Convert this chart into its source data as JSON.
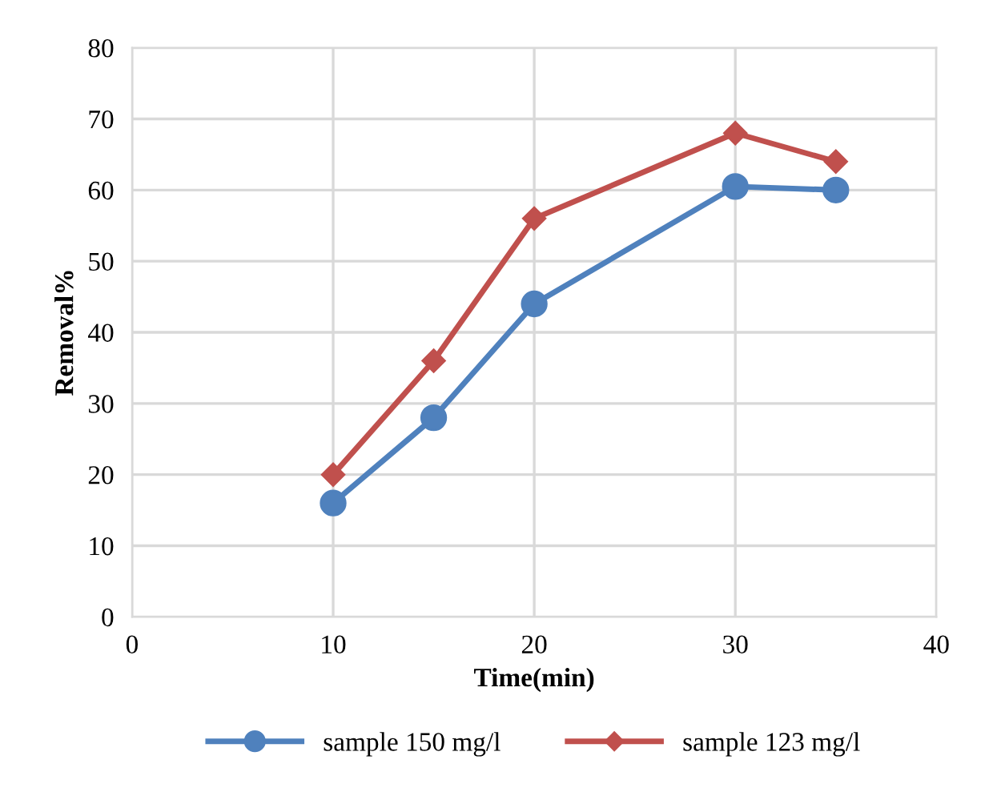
{
  "chart_data": {
    "type": "line",
    "xlabel": "Time(min)",
    "ylabel": "Removal%",
    "x": [
      10,
      15,
      20,
      30,
      35
    ],
    "series": [
      {
        "name": "sample 150 mg/l",
        "color": "#4f81bd",
        "marker": "circle",
        "values": [
          16,
          28,
          44,
          60.5,
          60
        ]
      },
      {
        "name": "sample 123 mg/l",
        "color": "#c0504d",
        "marker": "diamond",
        "values": [
          20,
          36,
          56,
          68,
          64
        ]
      }
    ],
    "xlim": [
      0,
      40
    ],
    "xticks": [
      0,
      10,
      20,
      30,
      40
    ],
    "ylim": [
      0,
      80
    ],
    "yticks": [
      0,
      10,
      20,
      30,
      40,
      50,
      60,
      70,
      80
    ],
    "grid": true,
    "legend": "bottom",
    "line_style": "solid"
  }
}
